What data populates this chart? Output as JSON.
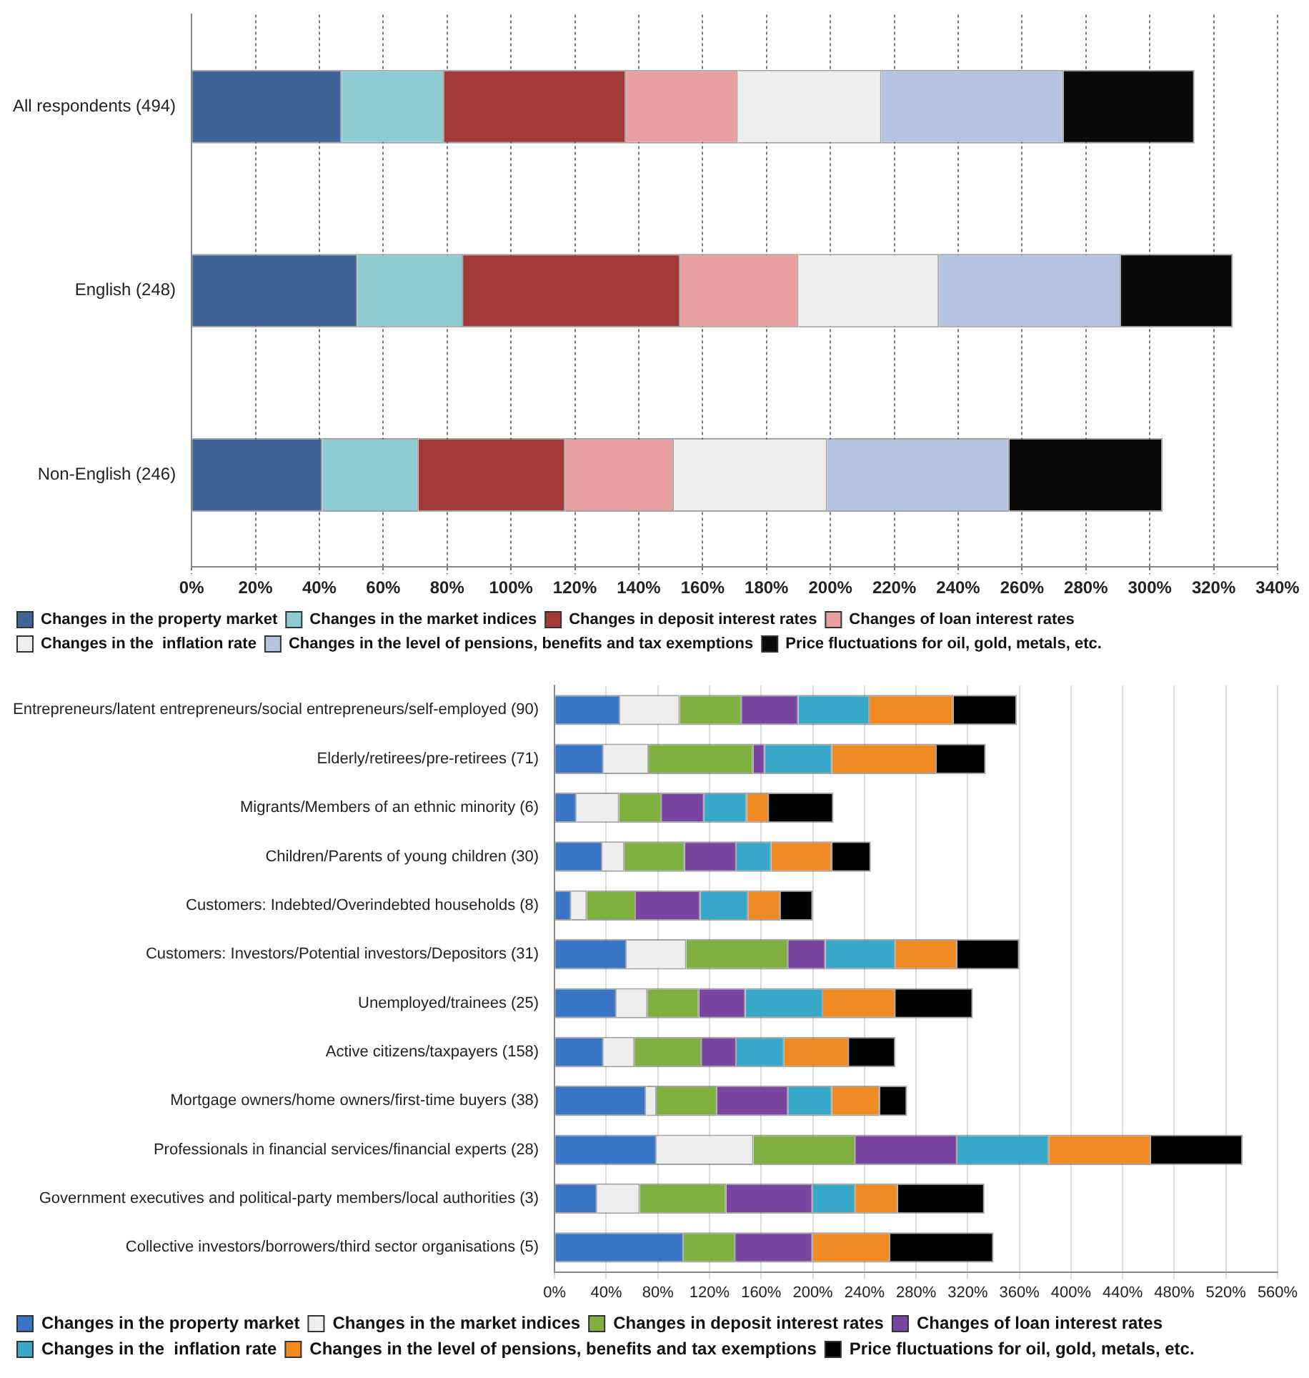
{
  "chart_data": [
    {
      "type": "bar",
      "orientation": "horizontal",
      "stacked": true,
      "grid": "x",
      "legend": "bottom",
      "categories": [
        "All respondents (494)",
        "English (248)",
        "Non-English (246)"
      ],
      "xlim": [
        0,
        340
      ],
      "xticks": [
        {
          "value": 0,
          "label": "0%"
        },
        {
          "value": 20,
          "label": "20%"
        },
        {
          "value": 40,
          "label": "40%"
        },
        {
          "value": 60,
          "label": "60%"
        },
        {
          "value": 80,
          "label": "80%"
        },
        {
          "value": 100,
          "label": "100%"
        },
        {
          "value": 120,
          "label": "120%"
        },
        {
          "value": 140,
          "label": "140%"
        },
        {
          "value": 160,
          "label": "160%"
        },
        {
          "value": 180,
          "label": "180%"
        },
        {
          "value": 200,
          "label": "200%"
        },
        {
          "value": 220,
          "label": "220%"
        },
        {
          "value": 240,
          "label": "240%"
        },
        {
          "value": 260,
          "label": "260%"
        },
        {
          "value": 280,
          "label": "280%"
        },
        {
          "value": 300,
          "label": "300%"
        },
        {
          "value": 320,
          "label": "320%"
        },
        {
          "value": 340,
          "label": "340%"
        }
      ],
      "series": [
        {
          "name": "Changes in the property market",
          "color": "#3f6496",
          "values": [
            47,
            52,
            41
          ]
        },
        {
          "name": "Changes in the market indices",
          "color": "#8fcbd3",
          "values": [
            32,
            33,
            30
          ]
        },
        {
          "name": "Changes in deposit interest rates",
          "color": "#a33a3a",
          "values": [
            57,
            68,
            46
          ]
        },
        {
          "name": "Changes of loan interest rates",
          "color": "#e8a0a0",
          "values": [
            35,
            37,
            34
          ]
        },
        {
          "name": "Changes in the  inflation rate",
          "color": "#eeeeee",
          "values": [
            45,
            44,
            48
          ]
        },
        {
          "name": "Changes in the level of pensions, benefits and tax exemptions",
          "color": "#b4c3e0",
          "values": [
            57,
            57,
            57
          ]
        },
        {
          "name": "Price fluctuations for oil, gold, metals, etc.",
          "color": "#0a0a0a",
          "values": [
            41,
            35,
            48
          ]
        }
      ]
    },
    {
      "type": "bar",
      "orientation": "horizontal",
      "stacked": true,
      "grid": "x",
      "legend": "bottom",
      "categories": [
        "Entrepreneurs/latent entrepreneurs/social entrepreneurs/self-employed (90)",
        "Elderly/retirees/pre-retirees (71)",
        "Migrants/Members of an ethnic minority (6)",
        "Children/Parents of young children (30)",
        "Customers: Indebted/Overindebted households (8)",
        "Customers: Investors/Potential investors/Depositors (31)",
        "Unemployed/trainees (25)",
        "Active citizens/taxpayers (158)",
        "Mortgage owners/home owners/first-time buyers (38)",
        "Professionals in financial services/financial experts (28)",
        "Government executives and political-party members/local authorities (3)",
        "Collective investors/borrowers/third sector organisations (5)"
      ],
      "xlim": [
        0,
        560
      ],
      "xticks": [
        {
          "value": 0,
          "label": "0%"
        },
        {
          "value": 40,
          "label": "40%"
        },
        {
          "value": 80,
          "label": "80%"
        },
        {
          "value": 120,
          "label": "120%"
        },
        {
          "value": 160,
          "label": "160%"
        },
        {
          "value": 200,
          "label": "200%"
        },
        {
          "value": 240,
          "label": "240%"
        },
        {
          "value": 280,
          "label": "280%"
        },
        {
          "value": 320,
          "label": "320%"
        },
        {
          "value": 360,
          "label": "360%"
        },
        {
          "value": 400,
          "label": "400%"
        },
        {
          "value": 440,
          "label": "440%"
        },
        {
          "value": 480,
          "label": "480%"
        },
        {
          "value": 520,
          "label": "520%"
        },
        {
          "value": 560,
          "label": "560%"
        }
      ],
      "series": [
        {
          "name": "Changes in the property market",
          "color": "#3a74c4",
          "values": [
            51,
            38,
            17,
            37,
            13,
            56,
            48,
            38,
            71,
            79,
            33,
            100
          ]
        },
        {
          "name": "Changes in the market indices",
          "color": "#eeeeee",
          "values": [
            46,
            35,
            33,
            17,
            12,
            46,
            24,
            24,
            8,
            75,
            33,
            0
          ]
        },
        {
          "name": "Changes in deposit interest rates",
          "color": "#7fb040",
          "values": [
            48,
            81,
            33,
            47,
            38,
            79,
            40,
            52,
            47,
            79,
            67,
            40
          ]
        },
        {
          "name": "Changes of loan interest rates",
          "color": "#7a45a0",
          "values": [
            44,
            9,
            33,
            40,
            50,
            29,
            36,
            27,
            55,
            79,
            67,
            60
          ]
        },
        {
          "name": "Changes in the  inflation rate",
          "color": "#38a8c8",
          "values": [
            55,
            52,
            33,
            27,
            37,
            54,
            60,
            37,
            34,
            71,
            33,
            0
          ]
        },
        {
          "name": "Changes in the level of pensions, benefits and tax exemptions",
          "color": "#f08a24",
          "values": [
            65,
            81,
            17,
            47,
            25,
            48,
            56,
            50,
            37,
            79,
            33,
            60
          ]
        },
        {
          "name": "Price fluctuations for oil, gold, metals, etc.",
          "color": "#000000",
          "values": [
            49,
            38,
            50,
            30,
            25,
            48,
            60,
            36,
            21,
            71,
            67,
            80
          ]
        }
      ]
    }
  ]
}
